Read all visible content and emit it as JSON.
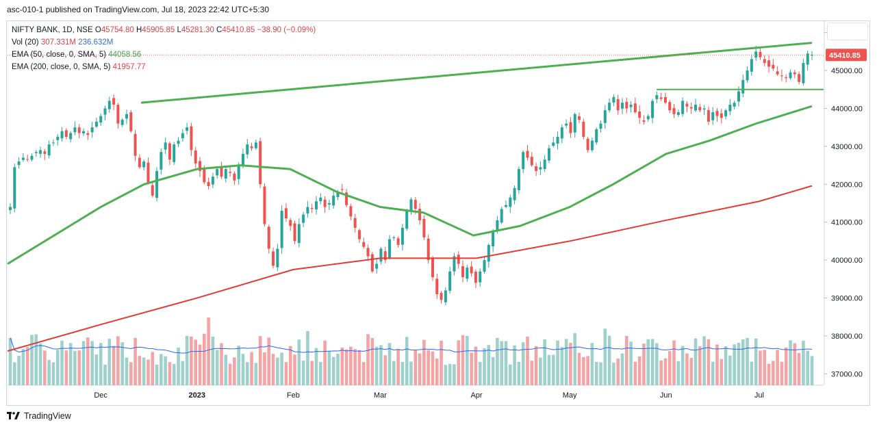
{
  "publish_line": "asc-010-1 published on TradingView.com, Jul 18, 2023 22:42 UTC+5:30",
  "brand": "TradingView",
  "legend": {
    "symbol": "NIFTY BANK, 1D, NSE",
    "o_label": "O",
    "o": "45754.80",
    "h_label": "H",
    "h": "45905.85",
    "l_label": "L",
    "l": "45281.30",
    "c_label": "C",
    "c": "45410.85",
    "change": "−38.90 (−0.09%)",
    "vol_label": "Vol (20)",
    "vol": "307.331M",
    "vol_ma": "236.632M",
    "ema50_label": "EMA (50, close, 0, SMA, 5)",
    "ema50": "44058.56",
    "ema200_label": "EMA (200, close, 0, SMA, 5)",
    "ema200": "41957.77"
  },
  "colors": {
    "up": "#26a69a",
    "down": "#ef5350",
    "vol_up": "#9fd1cc",
    "vol_down": "#f3a5a6",
    "ema50": "#4caf50",
    "ema200": "#e53935",
    "vol_ma": "#2962ff",
    "trendline": "#4caf50",
    "price_label": "#ef5350"
  },
  "chart_data": {
    "type": "candlestick",
    "y_axis_ticks": [
      "37000.00",
      "38000.00",
      "39000.00",
      "40000.00",
      "41000.00",
      "42000.00",
      "43000.00",
      "44000.00",
      "45000.00",
      "46000.00"
    ],
    "x_axis_ticks": [
      "Dec",
      "2023",
      "Feb",
      "Mar",
      "Apr",
      "May",
      "Jun",
      "Jul"
    ],
    "last_price_label": "45410.85",
    "ylim": [
      36700,
      46300
    ],
    "closes": [
      41400,
      42450,
      42600,
      42700,
      42650,
      42750,
      42850,
      42900,
      42800,
      43050,
      43100,
      43250,
      43400,
      43250,
      43350,
      43500,
      43350,
      43400,
      43300,
      43500,
      43650,
      43800,
      44000,
      44200,
      44100,
      43600,
      43700,
      43850,
      43400,
      42750,
      42450,
      42600,
      42050,
      41700,
      42350,
      42850,
      43100,
      42650,
      43050,
      43150,
      43350,
      43500,
      42900,
      42550,
      42350,
      42050,
      41950,
      42200,
      42400,
      42200,
      42400,
      42300,
      42100,
      42500,
      42800,
      43050,
      42950,
      43100,
      42000,
      40950,
      40300,
      39850,
      40300,
      41300,
      41100,
      40900,
      40500,
      40950,
      41200,
      41400,
      41350,
      41550,
      41650,
      41400,
      41500,
      41700,
      41800,
      41850,
      41450,
      41150,
      40850,
      40550,
      40350,
      40100,
      39700,
      39900,
      40300,
      40000,
      40550,
      40600,
      40400,
      40850,
      41300,
      41600,
      41350,
      41050,
      40600,
      40000,
      39550,
      39100,
      38950,
      39200,
      39700,
      40100,
      39900,
      39550,
      39800,
      39650,
      39400,
      39700,
      40000,
      40400,
      40750,
      41050,
      41350,
      41450,
      41650,
      41900,
      42400,
      42850,
      42700,
      42500,
      42350,
      42450,
      42650,
      42950,
      43100,
      43250,
      43500,
      43600,
      43350,
      43850,
      43700,
      43250,
      42900,
      43150,
      43450,
      43600,
      43950,
      44150,
      44300,
      43950,
      44150,
      44000,
      44100,
      43900,
      43750,
      43650,
      43800,
      44200,
      44350,
      44250,
      44150,
      43950,
      43850,
      43900,
      44200,
      44050,
      44000,
      44100,
      43950,
      44000,
      43650,
      43900,
      43800,
      43750,
      43950,
      44100,
      44150,
      44450,
      44750,
      45000,
      45300,
      45500,
      45350,
      45200,
      45100,
      45050,
      44900,
      44850,
      44800,
      44950,
      44900,
      44700,
      45200,
      45450,
      45410.85
    ],
    "ema50": [
      {
        "date": "2022-11-01",
        "value": 39900
      },
      {
        "date": "2022-11-15",
        "value": 40600
      },
      {
        "date": "2022-12-01",
        "value": 41400
      },
      {
        "date": "2022-12-15",
        "value": 42000
      },
      {
        "date": "2023-01-01",
        "value": 42400
      },
      {
        "date": "2023-01-15",
        "value": 42500
      },
      {
        "date": "2023-01-31",
        "value": 42400
      },
      {
        "date": "2023-02-15",
        "value": 41800
      },
      {
        "date": "2023-03-01",
        "value": 41400
      },
      {
        "date": "2023-03-15",
        "value": 41250
      },
      {
        "date": "2023-03-31",
        "value": 40650
      },
      {
        "date": "2023-04-15",
        "value": 40900
      },
      {
        "date": "2023-05-01",
        "value": 41400
      },
      {
        "date": "2023-05-15",
        "value": 42000
      },
      {
        "date": "2023-06-01",
        "value": 42800
      },
      {
        "date": "2023-06-15",
        "value": 43150
      },
      {
        "date": "2023-06-30",
        "value": 43600
      },
      {
        "date": "2023-07-18",
        "value": 44058.56
      }
    ],
    "ema200": [
      {
        "date": "2022-11-01",
        "value": 37600
      },
      {
        "date": "2022-12-01",
        "value": 38300
      },
      {
        "date": "2023-01-01",
        "value": 39000
      },
      {
        "date": "2023-02-01",
        "value": 39750
      },
      {
        "date": "2023-03-01",
        "value": 40050
      },
      {
        "date": "2023-04-01",
        "value": 40050
      },
      {
        "date": "2023-05-01",
        "value": 40500
      },
      {
        "date": "2023-06-01",
        "value": 41050
      },
      {
        "date": "2023-07-01",
        "value": 41550
      },
      {
        "date": "2023-07-18",
        "value": 41957.77
      }
    ],
    "trendline_rising": [
      {
        "date": "2022-12-14",
        "value": 44150
      },
      {
        "date": "2023-07-18",
        "value": 45730
      }
    ],
    "trendline_horizontal": {
      "from": "2023-05-29",
      "to": "2023-07-18",
      "value": 44500
    }
  }
}
